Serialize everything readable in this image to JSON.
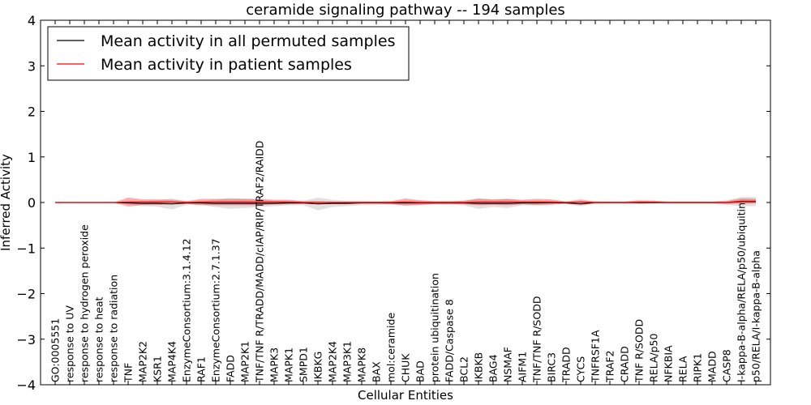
{
  "chart_data": {
    "type": "line",
    "title": "ceramide signaling pathway -- 194 samples",
    "xlabel": "Cellular Entities",
    "ylabel": "Inferred Activity",
    "ylim": [
      -4,
      4
    ],
    "yticks": [
      "4",
      "3",
      "2",
      "1",
      "0",
      "−1",
      "−2",
      "−3",
      "−4"
    ],
    "ytick_values": [
      4,
      3,
      2,
      1,
      0,
      -1,
      -2,
      -3,
      -4
    ],
    "grid": false,
    "legend_position": "top-left",
    "categories": [
      "GO:0005551",
      "response to UV",
      "response to hydrogen peroxide",
      "response to heat",
      "response to radiation",
      "TNF",
      "MAP2K2",
      "KSR1",
      "MAP4K4",
      "EnzymeConsortium:3.1.4.12",
      "RAF1",
      "EnzymeConsortium:2.7.1.37",
      "FADD",
      "MAP2K1",
      "TNF/TNF R/TRADD/MADD/cIAP/RIP/TRAF2/RAIDD",
      "MAPK3",
      "MAPK1",
      "SMPD1",
      "IKBKG",
      "MAP2K4",
      "MAP3K1",
      "MAPK8",
      "BAX",
      "mol:ceramide",
      "CHUK",
      "BAD",
      "protein ubiquitination",
      "FADD/Caspase 8",
      "BCL2",
      "IKBKB",
      "BAG4",
      "NSMAF",
      "AIFM1",
      "TNF/TNF R/SODD",
      "BIRC3",
      "TRADD",
      "CYCS",
      "TNFRSF1A",
      "TRAF2",
      "CRADD",
      "TNF R/SODD",
      "RELA/p50",
      "NFKBIA",
      "RELA",
      "RIPK1",
      "MADD",
      "CASP8",
      "I-kappa-B-alpha/RELA/p50/ubiquitin",
      "p50/RELA/I-kappa-B-alpha"
    ],
    "series": [
      {
        "name": "Mean activity in all permuted samples",
        "color": "#000000",
        "values": [
          0,
          0,
          0,
          0,
          0,
          -0.01,
          -0.02,
          -0.02,
          -0.03,
          -0.01,
          -0.01,
          -0.02,
          -0.02,
          -0.02,
          -0.02,
          -0.02,
          -0.01,
          -0.01,
          -0.03,
          -0.02,
          -0.02,
          -0.01,
          -0.01,
          -0.01,
          -0.01,
          -0.01,
          -0.01,
          -0.01,
          -0.01,
          -0.02,
          -0.02,
          -0.02,
          -0.01,
          -0.01,
          0,
          -0.01,
          -0.03,
          0,
          0,
          0,
          0,
          0,
          0,
          0,
          0,
          0,
          0,
          0.02,
          0.02
        ],
        "band": [
          0,
          0,
          0,
          0,
          0,
          0.03,
          0.06,
          0.07,
          0.12,
          0.04,
          0.04,
          0.08,
          0.12,
          0.1,
          0.08,
          0.06,
          0.05,
          0.05,
          0.14,
          0.08,
          0.06,
          0.05,
          0.04,
          0.04,
          0.05,
          0.05,
          0.04,
          0.04,
          0.05,
          0.12,
          0.08,
          0.1,
          0.05,
          0.05,
          0.03,
          0.03,
          0.05,
          0.03,
          0.02,
          0.02,
          0.02,
          0.02,
          0.02,
          0.02,
          0.02,
          0.02,
          0.05,
          0.1,
          0.1
        ]
      },
      {
        "name": "Mean activity in patient samples",
        "color": "#ff0000",
        "values": [
          0,
          0,
          0,
          0,
          0,
          0.01,
          0.01,
          0.01,
          0.01,
          0,
          0.01,
          0.01,
          0.01,
          0.01,
          0.01,
          0.01,
          0.01,
          0,
          0,
          0,
          0,
          0,
          0,
          0,
          0.01,
          0,
          0,
          0,
          0,
          0.01,
          0.01,
          0.01,
          0.01,
          0.01,
          0.01,
          0,
          0.01,
          0,
          0,
          0,
          0.01,
          0.01,
          0,
          0,
          0,
          0,
          0,
          0.03,
          0.03
        ],
        "band": [
          0,
          0,
          0,
          0,
          0,
          0.1,
          0.06,
          0.06,
          0.05,
          0.03,
          0.07,
          0.07,
          0.07,
          0.07,
          0.07,
          0.05,
          0.05,
          0.03,
          0.03,
          0.02,
          0.02,
          0.02,
          0.02,
          0.03,
          0.08,
          0.05,
          0.03,
          0.03,
          0.04,
          0.07,
          0.06,
          0.07,
          0.05,
          0.07,
          0.06,
          0.02,
          0.06,
          0.02,
          0.02,
          0.02,
          0.04,
          0.03,
          0.02,
          0.02,
          0.02,
          0.02,
          0.03,
          0.06,
          0.05
        ]
      }
    ]
  }
}
